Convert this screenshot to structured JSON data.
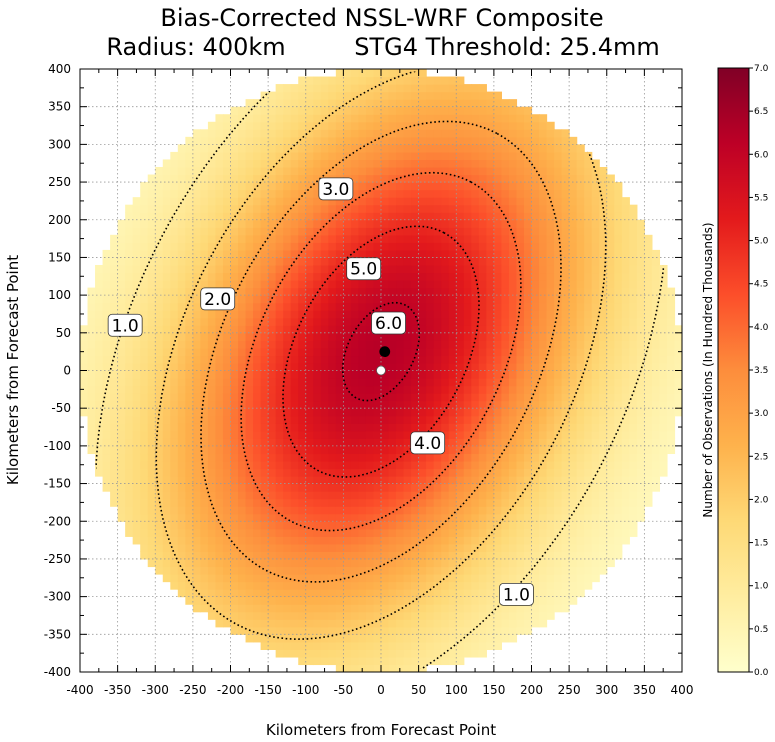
{
  "chart_data": {
    "type": "heatmap",
    "title_line1": "Bias-Corrected NSSL-WRF Composite",
    "title_radius": "Radius: 400km",
    "title_threshold": "STG4 Threshold: 25.4mm",
    "xlabel": "Kilometers from Forecast Point",
    "ylabel": "Kilometers from Forecast Point",
    "xlim": [
      -400,
      400
    ],
    "ylim": [
      -400,
      400
    ],
    "x_ticks": [
      "-400",
      "-350",
      "-300",
      "-250",
      "-200",
      "-150",
      "-100",
      "-50",
      "0",
      "50",
      "100",
      "150",
      "200",
      "250",
      "300",
      "350",
      "400"
    ],
    "y_ticks": [
      "400",
      "350",
      "300",
      "250",
      "200",
      "150",
      "100",
      "50",
      "0",
      "-50",
      "-100",
      "-150",
      "-200",
      "-250",
      "-300",
      "-350",
      "-400"
    ],
    "grid": true,
    "colorbar": {
      "label": "Number of Observations (In Hundred Thousands)",
      "min": 0.0,
      "max": 7.0,
      "ticks": [
        "0.0",
        "0.5",
        "1.0",
        "1.5",
        "2.0",
        "2.5",
        "3.0",
        "3.5",
        "4.0",
        "4.5",
        "5.0",
        "5.5",
        "6.0",
        "6.5",
        "7.0"
      ],
      "colormap": [
        "#ffffcc",
        "#ffeda0",
        "#fed976",
        "#feb24c",
        "#fd8d3c",
        "#fc4e2a",
        "#e31a1c",
        "#bd0026",
        "#800026"
      ]
    },
    "field": {
      "center": [
        0,
        25
      ],
      "peak_value": 6.2,
      "semi_axis_major_km": 340,
      "semi_axis_minor_km": 215,
      "major_axis_angle_deg": 62
    },
    "contour_levels": [
      1.0,
      2.0,
      3.0,
      4.0,
      5.0,
      6.0
    ],
    "contour_labels": [
      {
        "text": "1.0",
        "x": -340,
        "y": 60
      },
      {
        "text": "1.0",
        "x": 180,
        "y": -297
      },
      {
        "text": "2.0",
        "x": -217,
        "y": 95
      },
      {
        "text": "3.0",
        "x": -60,
        "y": 241
      },
      {
        "text": "4.0",
        "x": 62,
        "y": -96
      },
      {
        "text": "5.0",
        "x": -23,
        "y": 135
      },
      {
        "text": "6.0",
        "x": 10,
        "y": 63
      }
    ],
    "markers": [
      {
        "name": "composite-max",
        "x": 5,
        "y": 25,
        "color": "#000000"
      },
      {
        "name": "forecast-point",
        "x": 0,
        "y": 0,
        "color": "#ffffff"
      }
    ]
  }
}
